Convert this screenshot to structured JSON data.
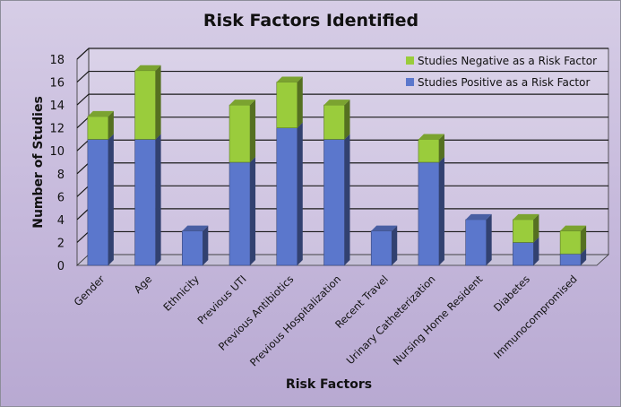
{
  "chart_data": {
    "type": "bar",
    "stacked": true,
    "title": "Risk Factors Identified",
    "xlabel": "Risk Factors",
    "ylabel": "Number of Studies",
    "ylim": [
      0,
      18
    ],
    "yticks": [
      0,
      2,
      4,
      6,
      8,
      10,
      12,
      14,
      16,
      18
    ],
    "grid": true,
    "legend_position": "top-right",
    "categories": [
      "Gender",
      "Age",
      "Ethnicity",
      "Previous UTI",
      "Previous Antibiotics",
      "Previous Hospitalization",
      "Recent Travel",
      "Urinary Catheterization",
      "Nursing Home Resident",
      "Diabetes",
      "Immunocompromised"
    ],
    "series": [
      {
        "name": "Studies Positive as a Risk Factor",
        "color": "#5b77cc",
        "values": [
          11,
          11,
          3,
          9,
          12,
          11,
          3,
          9,
          4,
          2,
          1
        ]
      },
      {
        "name": "Studies Negative as a Risk Factor",
        "color": "#9acc3c",
        "values": [
          2,
          6,
          0,
          5,
          4,
          3,
          0,
          2,
          0,
          2,
          2
        ]
      }
    ],
    "legend_order": [
      "Studies Negative as a Risk Factor",
      "Studies Positive as a Risk Factor"
    ]
  }
}
